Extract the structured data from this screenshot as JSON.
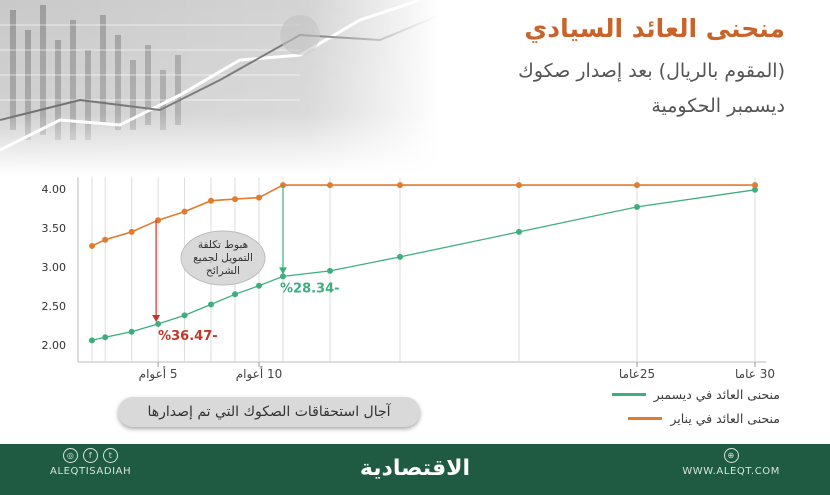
{
  "header": {
    "title": "منحنى العائد السيادي",
    "subtitle_line1": "(المقوم بالريال) بعد إصدار صكوك",
    "subtitle_line2": "ديسمبر الحكومية"
  },
  "axis_pill": "آجال استحقاقات الصكوك التي تم إصدارها",
  "legend": [
    {
      "label": "منحنى العائد في ديسمبر",
      "color": "#3fae7f"
    },
    {
      "label": "منحنى العائد في  يناير",
      "color": "#e07b30"
    }
  ],
  "footer": {
    "social_handle": "ALEQTISADIAH",
    "logo_text": "الاقتصادية",
    "website": "WWW.ALEQT.COM",
    "social_icons": [
      "instagram-icon",
      "facebook-icon",
      "twitter-icon"
    ]
  },
  "colors": {
    "december": "#3fae7f",
    "january": "#e07b30",
    "drop_red": "#c0392b",
    "footer": "#1f5a43",
    "title": "#c8642a"
  },
  "chart_data": {
    "type": "line",
    "x": [
      0.5,
      1,
      2,
      3,
      4,
      5,
      6,
      7,
      8,
      10,
      15,
      20,
      25,
      30
    ],
    "series": [
      {
        "name": "منحنى العائد في ديسمبر",
        "values": [
          2.06,
          2.1,
          2.17,
          2.27,
          2.38,
          2.52,
          2.65,
          2.76,
          2.88,
          2.95,
          3.13,
          3.45,
          3.77,
          3.99
        ]
      },
      {
        "name": "منحنى العائد في  يناير",
        "values": [
          3.27,
          3.35,
          3.45,
          3.6,
          3.71,
          3.85,
          3.87,
          3.89,
          4.05,
          4.05,
          4.05,
          4.05,
          4.05,
          4.05
        ]
      }
    ],
    "y_ticks": [
      "2.00",
      "2.50",
      "3.00",
      "3.50",
      "4.00"
    ],
    "ylim": [
      1.85,
      4.15
    ],
    "x_tick_labels": [
      {
        "x": 3,
        "label": "5 أعوام"
      },
      {
        "x": 7,
        "label": "10 أعوام"
      },
      {
        "x": 25,
        "label": "25عاما"
      },
      {
        "x": 30,
        "label": "30 عاما"
      }
    ],
    "annotations": {
      "callout_text": "هبوط تكلفة التمويل لجميع الشرائح",
      "drop_short": {
        "x": 3,
        "label": "%36.47-"
      },
      "drop_long": {
        "x": 8,
        "label": "%28.34-"
      }
    },
    "grid": "vertical"
  }
}
